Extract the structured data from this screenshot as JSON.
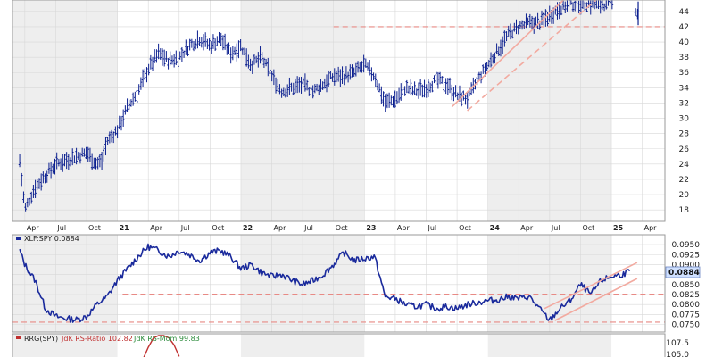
{
  "chart_data": [
    {
      "type": "ohlc",
      "series_name": "",
      "ylim": [
        16.5,
        45.5
      ],
      "y_ticks": [
        18,
        20,
        22,
        24,
        26,
        28,
        30,
        32,
        34,
        36,
        38,
        40,
        42,
        44
      ],
      "x_labels": [
        {
          "label": "Apr",
          "year": false
        },
        {
          "label": "Jul",
          "year": false
        },
        {
          "label": "Oct",
          "year": false
        },
        {
          "label": "21",
          "year": true
        },
        {
          "label": "Apr",
          "year": false
        },
        {
          "label": "Jul",
          "year": false
        },
        {
          "label": "Oct",
          "year": false
        },
        {
          "label": "22",
          "year": true
        },
        {
          "label": "Apr",
          "year": false
        },
        {
          "label": "Jul",
          "year": false
        },
        {
          "label": "Oct",
          "year": false
        },
        {
          "label": "23",
          "year": true
        },
        {
          "label": "Apr",
          "year": false
        },
        {
          "label": "Jul",
          "year": false
        },
        {
          "label": "Oct",
          "year": false
        },
        {
          "label": "24",
          "year": true
        },
        {
          "label": "Apr",
          "year": false
        },
        {
          "label": "Jul",
          "year": false
        },
        {
          "label": "Oct",
          "year": false
        },
        {
          "label": "25",
          "year": true
        },
        {
          "label": "Apr",
          "year": false
        }
      ],
      "x_label_months": [
        0,
        3,
        6,
        9,
        12,
        15,
        18,
        21,
        24,
        27,
        30,
        33,
        36,
        39,
        42,
        45,
        48,
        51,
        54,
        57,
        60
      ],
      "path_months": [
        -0.5,
        0,
        1,
        2,
        3,
        4,
        5,
        6,
        7,
        7.5,
        8,
        9,
        10,
        11,
        12,
        13,
        14,
        15,
        16,
        17,
        18,
        19,
        20,
        21,
        22,
        23,
        24,
        25,
        26,
        27,
        28,
        29,
        30,
        31,
        32,
        33,
        34,
        35,
        36,
        37,
        38,
        39,
        40,
        41,
        42,
        43,
        44,
        45,
        46,
        47,
        48,
        49,
        50,
        51,
        52,
        53,
        54,
        55,
        56,
        57,
        58,
        59,
        59.5,
        60
      ],
      "path_values": [
        24.5,
        18,
        21,
        22.5,
        24,
        24.5,
        25,
        25.5,
        24,
        24.5,
        27,
        28.5,
        31.5,
        33.5,
        36.5,
        38.5,
        37.5,
        38,
        39.5,
        40.5,
        39.5,
        40.5,
        38.5,
        39.5,
        37,
        38,
        35.5,
        33.5,
        34,
        34.5,
        33.5,
        34.5,
        35.5,
        35.5,
        36,
        37,
        35.5,
        32,
        32.5,
        34,
        33.5,
        34,
        35,
        34.5,
        33,
        32.5,
        35,
        37,
        39,
        41,
        42,
        42.5,
        42.5,
        43.5,
        44.5,
        45,
        45,
        45,
        45,
        45,
        45,
        45,
        44,
        42.5
      ],
      "horizontal_lines": [
        42
      ],
      "trend_channel": [
        {
          "from": [
            41.5,
            31.5
          ],
          "to": [
            53.5,
            47
          ]
        },
        {
          "from": [
            43,
            31
          ],
          "to": [
            55.5,
            45.5
          ]
        }
      ]
    },
    {
      "type": "line",
      "series_name": "XLF:SPY",
      "last_value": "0.0884",
      "legend_text": "XLF:SPY 0.0884",
      "ylim": [
        0.0738,
        0.0968
      ],
      "y_ticks": [
        "0.0950",
        "0.0925",
        "0.0900",
        "0.0875",
        "0.0850",
        "0.0825",
        "0.0800",
        "0.0775",
        "0.0750"
      ],
      "last_value_label": "0.0884",
      "x": [
        -0.5,
        0,
        1,
        2,
        3,
        4,
        5,
        6,
        7,
        8,
        9,
        10,
        11,
        12,
        13,
        14,
        15,
        16,
        17,
        18,
        19,
        20,
        21,
        22,
        23,
        24,
        25,
        26,
        27,
        28,
        29,
        30,
        31,
        32,
        33,
        34,
        35,
        36,
        37,
        38,
        39,
        40,
        41,
        42,
        43,
        44,
        45,
        46,
        47,
        48,
        49,
        50,
        51,
        52,
        53,
        54,
        55,
        56,
        57,
        58,
        58.8
      ],
      "y": [
        0.0935,
        0.09,
        0.086,
        0.079,
        0.077,
        0.0765,
        0.0762,
        0.077,
        0.08,
        0.082,
        0.086,
        0.089,
        0.092,
        0.0945,
        0.0935,
        0.092,
        0.0935,
        0.0925,
        0.091,
        0.093,
        0.0935,
        0.092,
        0.089,
        0.09,
        0.088,
        0.087,
        0.0875,
        0.086,
        0.085,
        0.086,
        0.0875,
        0.09,
        0.093,
        0.091,
        0.0915,
        0.092,
        0.082,
        0.0815,
        0.08,
        0.0795,
        0.08,
        0.079,
        0.0795,
        0.079,
        0.08,
        0.0805,
        0.081,
        0.0812,
        0.082,
        0.0815,
        0.082,
        0.079,
        0.076,
        0.079,
        0.081,
        0.085,
        0.0825,
        0.086,
        0.087,
        0.0875,
        0.0884
      ],
      "horizontal_lines": [
        0.0826,
        0.0756
      ],
      "trend_channel": [
        {
          "from": [
            50.5,
            0.079
          ],
          "to": [
            59.5,
            0.0905
          ]
        },
        {
          "from": [
            51.5,
            0.076
          ],
          "to": [
            59.5,
            0.0865
          ]
        }
      ]
    },
    {
      "type": "line",
      "legend_prefix": "RRG(SPY)",
      "legend_ratio": "JdK RS-Ratio 102.82",
      "legend_mom": "JdK RS-Mom 99.83",
      "ylim": [
        104,
        109
      ],
      "y_ticks": [
        "107.5",
        "105.0"
      ],
      "x": [
        11.5,
        12,
        12.5,
        13,
        13.5,
        14,
        14.5,
        15
      ],
      "y": [
        104,
        106.5,
        108.5,
        109,
        109,
        108.5,
        107,
        104.5
      ]
    }
  ],
  "colors": {
    "background": "#ffffff",
    "band_shade": "#eeeeee",
    "grid": "#d8d8d8",
    "bars": "#0b1f8f",
    "ratio_line": "#1a2a9c",
    "support_line": "#e88a85",
    "channel_line": "#f2aaa0",
    "rrg_ratio": "#c03030",
    "rrg_mom": "#2a8a3a",
    "last_value_box": "#cfe0ff"
  }
}
